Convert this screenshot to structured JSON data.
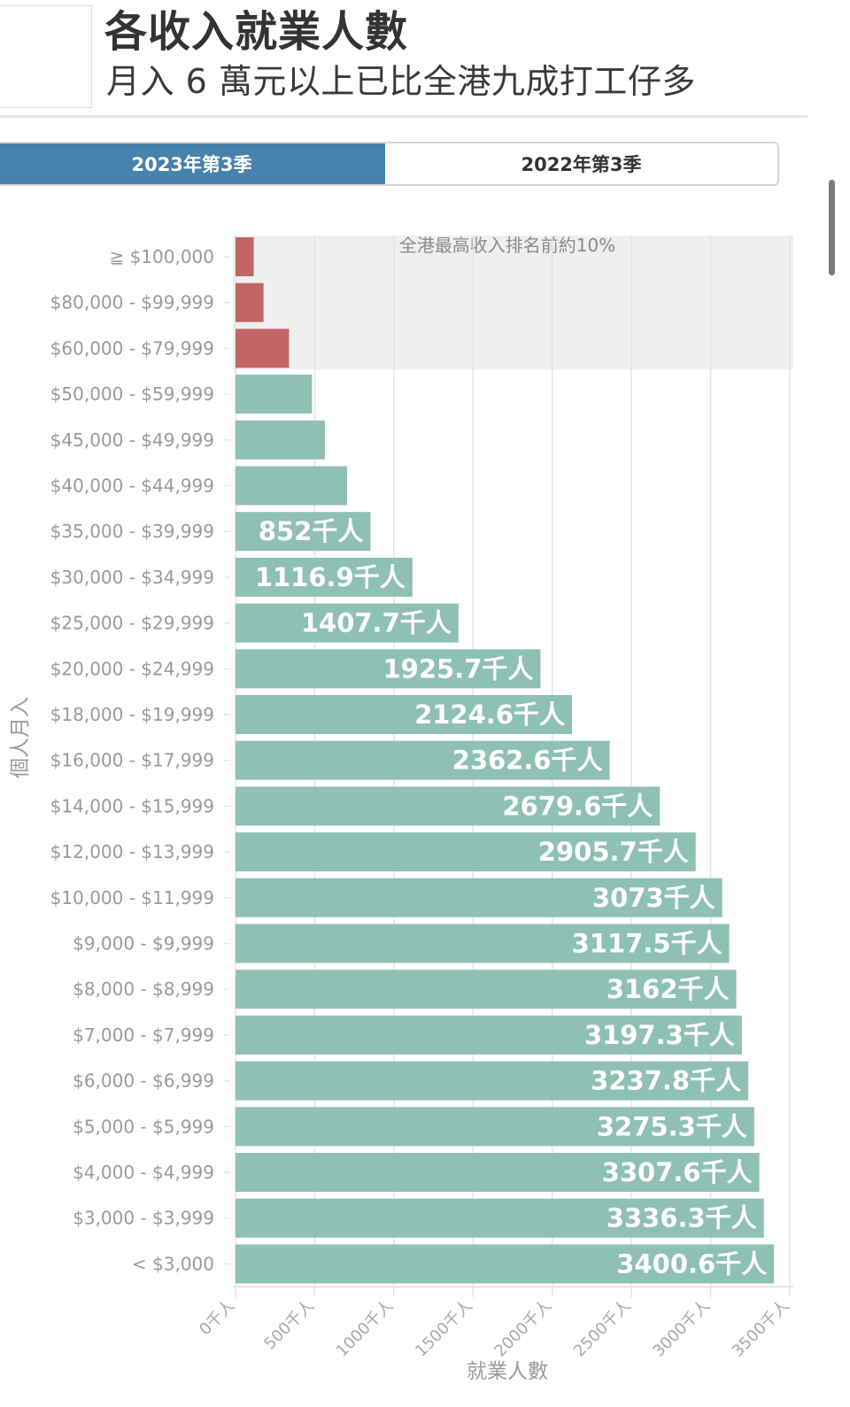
{
  "header": {
    "title": "各收入就業人數",
    "subtitle": "月入 6 萬元以上已比全港九成打工仔多"
  },
  "tabs": [
    {
      "label": "2023年第3季",
      "active": true
    },
    {
      "label": "2022年第3季",
      "active": false
    }
  ],
  "colors": {
    "top_bar": "#c26565",
    "bar": "#8fc0b4",
    "band": "#efefef",
    "tab_active": "#4682ab"
  },
  "chart_data": {
    "type": "bar",
    "orientation": "horizontal",
    "title": "各收入就業人數",
    "xlabel": "就業人數",
    "ylabel": "個人月入",
    "xlim": [
      0,
      3500
    ],
    "x_ticks": [
      0,
      500,
      1000,
      1500,
      2000,
      2500,
      3000,
      3500
    ],
    "x_tick_labels": [
      "0千人",
      "500千人",
      "1000千人",
      "1500千人",
      "2000千人",
      "2500千人",
      "3000千人",
      "3500千人"
    ],
    "grid": true,
    "annotation": "全港最高收入排名前約10%",
    "highlight_categories": [
      "≧ $100,000",
      "$80,000 - $99,999",
      "$60,000 - $79,999"
    ],
    "categories": [
      "≧ $100,000",
      "$80,000 - $99,999",
      "$60,000 - $79,999",
      "$50,000 - $59,999",
      "$45,000 - $49,999",
      "$40,000 - $44,999",
      "$35,000 - $39,999",
      "$30,000 - $34,999",
      "$25,000 - $29,999",
      "$20,000 - $24,999",
      "$18,000 - $19,999",
      "$16,000 - $17,999",
      "$14,000 - $15,999",
      "$12,000 - $13,999",
      "$10,000 - $11,999",
      "$9,000 - $9,999",
      "$8,000 - $8,999",
      "$7,000 - $7,999",
      "$6,000 - $6,999",
      "$5,000 - $5,999",
      "$4,000 - $4,999",
      "$3,000 - $3,999",
      "< $3,000"
    ],
    "values": [
      115,
      177,
      338,
      483,
      565,
      704,
      852,
      1116.9,
      1407.7,
      1925.7,
      2124.6,
      2362.6,
      2679.6,
      2905.7,
      3073,
      3117.5,
      3162,
      3197.3,
      3237.8,
      3275.3,
      3307.6,
      3336.3,
      3400.6
    ],
    "data_labels": [
      "",
      "",
      "",
      "",
      "",
      "",
      "852千人",
      "1116.9千人",
      "1407.7千人",
      "1925.7千人",
      "2124.6千人",
      "2362.6千人",
      "2679.6千人",
      "2905.7千人",
      "3073千人",
      "3117.5千人",
      "3162千人",
      "3197.3千人",
      "3237.8千人",
      "3275.3千人",
      "3307.6千人",
      "3336.3千人",
      "3400.6千人"
    ]
  }
}
